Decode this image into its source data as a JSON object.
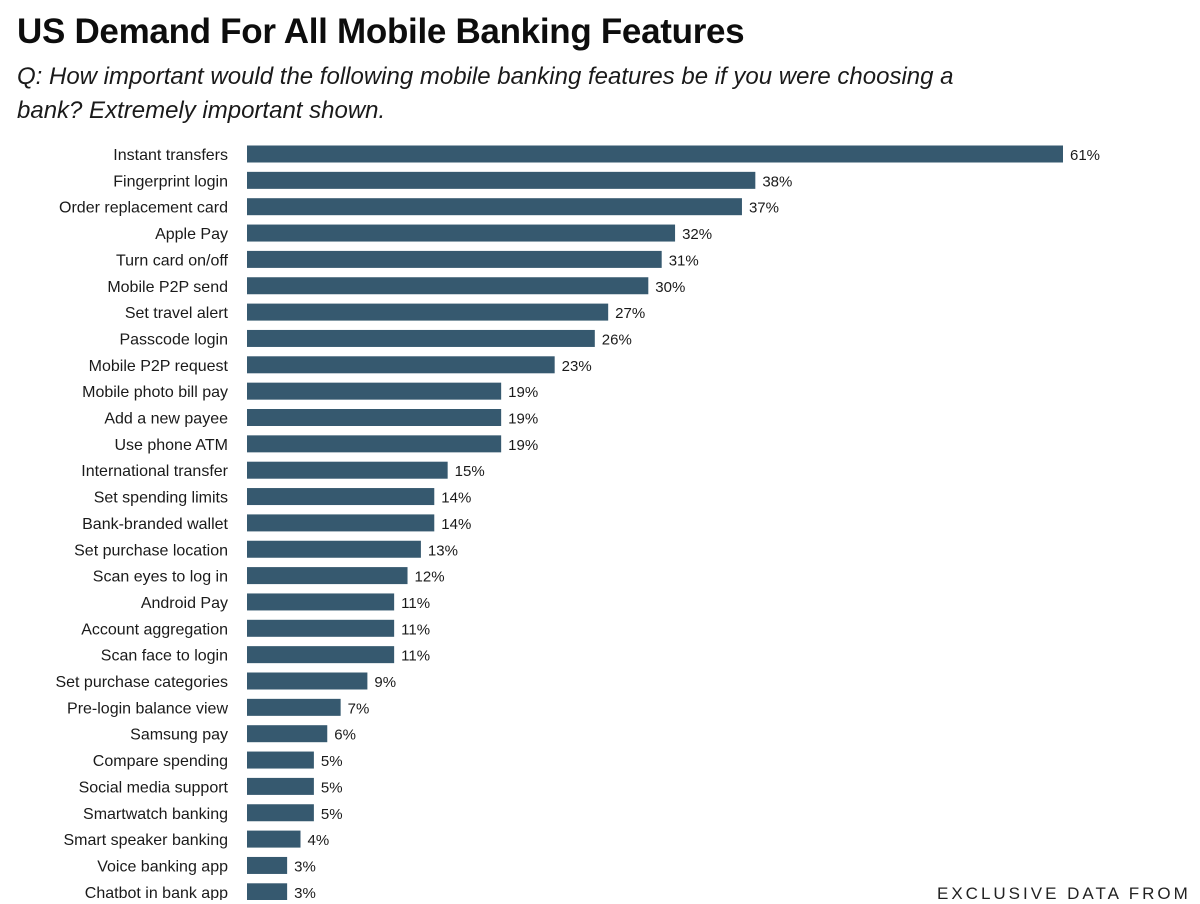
{
  "title": "US Demand For All Mobile Banking Features",
  "subtitle": "Q: How important would the following mobile banking features be if you were choosing a bank? Extremely important shown.",
  "footer": "EXCLUSIVE DATA FROM",
  "colors": {
    "bar": "#36596f",
    "background": "#ffffff",
    "text": "#1a1a1a"
  },
  "chart_data": {
    "type": "bar",
    "orientation": "horizontal",
    "categories": [
      "Instant transfers",
      "Fingerprint login",
      "Order replacement card",
      "Apple Pay",
      "Turn card on/off",
      "Mobile P2P send",
      "Set travel alert",
      "Passcode login",
      "Mobile P2P request",
      "Mobile photo bill pay",
      "Add a new payee",
      "Use phone ATM",
      "International transfer",
      "Set spending limits",
      "Bank-branded wallet",
      "Set purchase location",
      "Scan eyes to log in",
      "Android Pay",
      "Account aggregation",
      "Scan face to login",
      "Set purchase categories",
      "Pre-login balance view",
      "Samsung pay",
      "Compare spending",
      "Social media support",
      "Smartwatch banking",
      "Smart speaker banking",
      "Voice banking app",
      "Chatbot in bank app"
    ],
    "values": [
      61,
      38,
      37,
      32,
      31,
      30,
      27,
      26,
      23,
      19,
      19,
      19,
      15,
      14,
      14,
      13,
      12,
      11,
      11,
      11,
      9,
      7,
      6,
      5,
      5,
      5,
      4,
      3,
      3
    ],
    "value_labels": [
      "61%",
      "38%",
      "37%",
      "32%",
      "31%",
      "30%",
      "27%",
      "26%",
      "23%",
      "19%",
      "19%",
      "19%",
      "15%",
      "14%",
      "14%",
      "13%",
      "12%",
      "11%",
      "11%",
      "11%",
      "9%",
      "7%",
      "6%",
      "5%",
      "5%",
      "5%",
      "4%",
      "3%",
      "3%"
    ],
    "xlabel": "",
    "ylabel": "",
    "xlim": [
      0,
      61
    ],
    "grid": false,
    "legend": "none"
  }
}
